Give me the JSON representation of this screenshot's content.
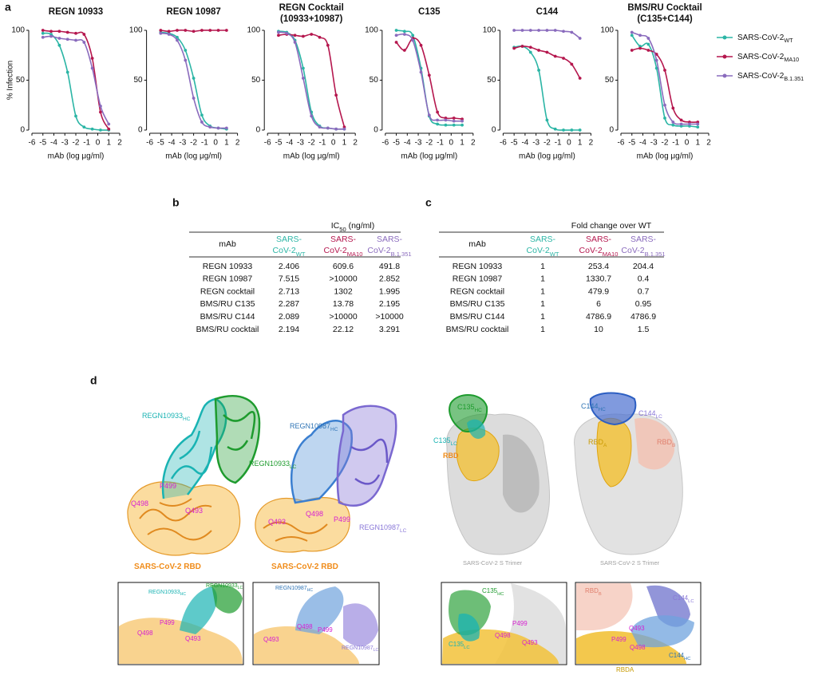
{
  "panel_labels": {
    "a": "a",
    "b": "b",
    "c": "c",
    "d": "d"
  },
  "chart_data": [
    {
      "type": "line",
      "markers": true,
      "title": [
        "REGN 10933"
      ],
      "y_label": "% Infection",
      "x_label": "mAb (log μg/ml)",
      "x": [
        -5,
        -4.25,
        -3.5,
        -2.75,
        -2,
        -1.25,
        -0.5,
        0.25,
        1
      ],
      "series": [
        {
          "name": "SARS-CoV-2",
          "name_subscript": "WT",
          "color": "#2bb5a5",
          "values": [
            97,
            96,
            85,
            58,
            14,
            3,
            1,
            0,
            0
          ]
        },
        {
          "name": "SARS-CoV-2",
          "name_subscript": "MA10",
          "color": "#b5174e",
          "values": [
            100,
            99,
            99,
            98,
            97,
            96,
            72,
            18,
            1
          ]
        },
        {
          "name": "SARS-CoV-2",
          "name_subscript": "B.1.351",
          "color": "#8a6bbd",
          "values": [
            93,
            94,
            92,
            91,
            90,
            88,
            62,
            24,
            6
          ]
        }
      ],
      "xlim": [
        -6,
        2
      ],
      "xticks": [
        -6,
        -5,
        -4,
        -3,
        -2,
        -1,
        0,
        1,
        2
      ],
      "ylim": [
        0,
        100
      ],
      "yticks": [
        0,
        50,
        100
      ]
    },
    {
      "type": "line",
      "markers": true,
      "title": [
        "REGN 10987"
      ],
      "x_label": "mAb (log μg/ml)",
      "x": [
        -5,
        -4.25,
        -3.5,
        -2.75,
        -2,
        -1.25,
        -0.5,
        0.25,
        1
      ],
      "series": [
        {
          "name": "SARS-CoV-2",
          "name_subscript": "WT",
          "color": "#2bb5a5",
          "values": [
            98,
            97,
            93,
            80,
            52,
            15,
            4,
            2,
            1
          ]
        },
        {
          "name": "SARS-CoV-2",
          "name_subscript": "MA10",
          "color": "#b5174e",
          "values": [
            100,
            99,
            100,
            100,
            99,
            100,
            100,
            100,
            100
          ]
        },
        {
          "name": "SARS-CoV-2",
          "name_subscript": "B.1.351",
          "color": "#8a6bbd",
          "values": [
            97,
            96,
            90,
            70,
            32,
            8,
            3,
            2,
            2
          ]
        }
      ],
      "xlim": [
        -6,
        2
      ],
      "xticks": [
        -6,
        -5,
        -4,
        -3,
        -2,
        -1,
        0,
        1,
        2
      ],
      "ylim": [
        0,
        100
      ],
      "yticks": [
        0,
        50,
        100
      ]
    },
    {
      "type": "line",
      "markers": true,
      "title": [
        "REGN Cocktail",
        "(10933+10987)"
      ],
      "x_label": "mAb (log μg/ml)",
      "x": [
        -5,
        -4.25,
        -3.5,
        -2.75,
        -2,
        -1.25,
        -0.5,
        0.25,
        1
      ],
      "series": [
        {
          "name": "SARS-CoV-2",
          "name_subscript": "WT",
          "color": "#2bb5a5",
          "values": [
            99,
            98,
            90,
            62,
            18,
            4,
            2,
            1,
            1
          ]
        },
        {
          "name": "SARS-CoV-2",
          "name_subscript": "MA10",
          "color": "#b5174e",
          "values": [
            95,
            96,
            95,
            94,
            96,
            93,
            85,
            35,
            3
          ]
        },
        {
          "name": "SARS-CoV-2",
          "name_subscript": "B.1.351",
          "color": "#8a6bbd",
          "values": [
            98,
            97,
            88,
            52,
            14,
            3,
            2,
            1,
            1
          ]
        }
      ],
      "xlim": [
        -6,
        2
      ],
      "xticks": [
        -6,
        -5,
        -4,
        -3,
        -2,
        -1,
        0,
        1,
        2
      ],
      "ylim": [
        0,
        100
      ],
      "yticks": [
        0,
        50,
        100
      ]
    },
    {
      "type": "line",
      "markers": true,
      "title": [
        "C135"
      ],
      "x_label": "mAb (log μg/ml)",
      "x": [
        -5,
        -4.25,
        -3.5,
        -2.75,
        -2,
        -1.25,
        -0.5,
        0.25,
        1
      ],
      "series": [
        {
          "name": "SARS-CoV-2",
          "name_subscript": "WT",
          "color": "#2bb5a5",
          "values": [
            100,
            99,
            95,
            62,
            14,
            6,
            5,
            5,
            5
          ]
        },
        {
          "name": "SARS-CoV-2",
          "name_subscript": "MA10",
          "color": "#b5174e",
          "values": [
            88,
            80,
            92,
            85,
            55,
            18,
            12,
            12,
            11
          ]
        },
        {
          "name": "SARS-CoV-2",
          "name_subscript": "B.1.351",
          "color": "#8a6bbd",
          "values": [
            95,
            96,
            90,
            58,
            15,
            10,
            10,
            9,
            9
          ]
        }
      ],
      "xlim": [
        -6,
        2
      ],
      "xticks": [
        -6,
        -5,
        -4,
        -3,
        -2,
        -1,
        0,
        1,
        2
      ],
      "ylim": [
        0,
        100
      ],
      "yticks": [
        0,
        50,
        100
      ]
    },
    {
      "type": "line",
      "markers": true,
      "title": [
        "C144"
      ],
      "x_label": "mAb (log μg/ml)",
      "x": [
        -5,
        -4.25,
        -3.5,
        -2.75,
        -2,
        -1.25,
        -0.5,
        0.25,
        1
      ],
      "series": [
        {
          "name": "SARS-CoV-2",
          "name_subscript": "WT",
          "color": "#2bb5a5",
          "values": [
            83,
            84,
            78,
            60,
            10,
            1,
            0,
            0,
            0
          ]
        },
        {
          "name": "SARS-CoV-2",
          "name_subscript": "MA10",
          "color": "#b5174e",
          "values": [
            82,
            84,
            83,
            80,
            78,
            74,
            72,
            66,
            52
          ]
        },
        {
          "name": "SARS-CoV-2",
          "name_subscript": "B.1.351",
          "color": "#8a6bbd",
          "values": [
            100,
            100,
            100,
            100,
            100,
            100,
            99,
            98,
            92
          ]
        }
      ],
      "xlim": [
        -6,
        2
      ],
      "xticks": [
        -6,
        -5,
        -4,
        -3,
        -2,
        -1,
        0,
        1,
        2
      ],
      "ylim": [
        0,
        100
      ],
      "yticks": [
        0,
        50,
        100
      ]
    },
    {
      "type": "line",
      "markers": true,
      "title": [
        "BMS/RU Cocktail",
        "(C135+C144)"
      ],
      "x_label": "mAb (log μg/ml)",
      "x": [
        -5,
        -4.25,
        -3.5,
        -2.75,
        -2,
        -1.25,
        -0.5,
        0.25,
        1
      ],
      "series": [
        {
          "name": "SARS-CoV-2",
          "name_subscript": "WT",
          "color": "#2bb5a5",
          "values": [
            95,
            84,
            86,
            62,
            12,
            5,
            4,
            4,
            3
          ]
        },
        {
          "name": "SARS-CoV-2",
          "name_subscript": "MA10",
          "color": "#b5174e",
          "values": [
            80,
            82,
            80,
            76,
            60,
            22,
            10,
            8,
            8
          ]
        },
        {
          "name": "SARS-CoV-2",
          "name_subscript": "B.1.351",
          "color": "#8a6bbd",
          "values": [
            98,
            95,
            92,
            70,
            25,
            8,
            6,
            6,
            6
          ]
        }
      ],
      "xlim": [
        -6,
        2
      ],
      "xticks": [
        -6,
        -5,
        -4,
        -3,
        -2,
        -1,
        0,
        1,
        2
      ],
      "ylim": [
        0,
        100
      ],
      "yticks": [
        0,
        50,
        100
      ]
    }
  ],
  "panel_b": {
    "caption": {
      "main": "IC",
      "sub": "50",
      "tail": " (ng/ml)"
    },
    "columns": [
      {
        "line1": "mAb"
      },
      {
        "line1": "SARS-",
        "line2": "CoV-2",
        "sub": "WT",
        "color": "#2bb5a5"
      },
      {
        "line1": "SARS-",
        "line2": "CoV-2",
        "sub": "MA10",
        "color": "#b5174e"
      },
      {
        "line1": "SARS-",
        "line2": "CoV-2",
        "sub": "B.1.351",
        "color": "#8a6bbd"
      }
    ],
    "rows": [
      [
        "REGN 10933",
        "2.406",
        "609.6",
        "491.8"
      ],
      [
        "REGN 10987",
        "7.515",
        ">10000",
        "2.852"
      ],
      [
        "REGN cocktail",
        "2.713",
        "1302",
        "1.995"
      ],
      [
        "BMS/RU C135",
        "2.287",
        "13.78",
        "2.195"
      ],
      [
        "BMS/RU C144",
        "2.089",
        ">10000",
        ">10000"
      ],
      [
        "BMS/RU cocktail",
        "2.194",
        "22.12",
        "3.291"
      ]
    ]
  },
  "panel_c": {
    "caption": {
      "main": "Fold change over WT"
    },
    "columns": [
      {
        "line1": "mAb"
      },
      {
        "line1": "SARS-",
        "line2": "CoV-2",
        "sub": "WT",
        "color": "#2bb5a5"
      },
      {
        "line1": "SARS-",
        "line2": "CoV-2",
        "sub": "MA10",
        "color": "#b5174e"
      },
      {
        "line1": "SARS-",
        "line2": "CoV-2",
        "sub": "B.1.351",
        "color": "#8a6bbd"
      }
    ],
    "rows": [
      [
        "REGN 10933",
        "1",
        "253.4",
        "204.4"
      ],
      [
        "REGN 10987",
        "1",
        "1330.7",
        "0.4"
      ],
      [
        "REGN cocktail",
        "1",
        "479.9",
        "0.7"
      ],
      [
        "BMS/RU C135",
        "1",
        "6",
        "0.95"
      ],
      [
        "BMS/RU C144",
        "1",
        "4786.9",
        "4786.9"
      ],
      [
        "BMS/RU cocktail",
        "1",
        "10",
        "1.5"
      ]
    ]
  },
  "panel_d": {
    "images": [
      {
        "labels": [
          {
            "text": "REGN10933",
            "sub": "HC",
            "color": "#19b3b3"
          },
          {
            "text": "REGN10933",
            "sub": "LC",
            "color": "#1e9b2e"
          },
          {
            "text": "P499",
            "color": "#d61fd1"
          },
          {
            "text": "Q498",
            "color": "#d61fd1"
          },
          {
            "text": "Q493",
            "color": "#d61fd1"
          },
          {
            "text": "SARS-CoV-2 RBD",
            "color": "#f08c1a",
            "bold": true
          }
        ]
      },
      {
        "labels": [
          {
            "text": "REGN10987",
            "sub": "HC",
            "color": "#2f74b5"
          },
          {
            "text": "REGN10987",
            "sub": "LC",
            "color": "#8a78d8"
          },
          {
            "text": "Q498",
            "color": "#d61fd1"
          },
          {
            "text": "Q493",
            "color": "#d61fd1"
          },
          {
            "text": "P499",
            "color": "#d61fd1"
          },
          {
            "text": "SARS-CoV-2 RBD",
            "color": "#f08c1a",
            "bold": true
          }
        ]
      },
      {
        "labels": [
          {
            "text": "C135",
            "sub": "HC",
            "color": "#1e9b2e"
          },
          {
            "text": "C135",
            "sub": "LC",
            "color": "#19b3b3"
          },
          {
            "text": "RBD",
            "color": "#f08c1a",
            "bold": true
          },
          {
            "text": "SARS-CoV-2 S Trimer",
            "color": "#a0a0a0"
          }
        ]
      },
      {
        "labels": [
          {
            "text": "C144",
            "sub": "HC",
            "color": "#2f74b5"
          },
          {
            "text": "C144",
            "sub": "LC",
            "color": "#8a78d8"
          },
          {
            "text": "RBD",
            "sub": "A",
            "color": "#c99a00"
          },
          {
            "text": "RBD",
            "sub": "B",
            "color": "#e0806e"
          },
          {
            "text": "SARS-CoV-2 S Trimer",
            "color": "#a0a0a0"
          }
        ]
      },
      {
        "labels": [
          {
            "text": "REGN10933",
            "sub": "HC",
            "color": "#19b3b3"
          },
          {
            "text": "REGN10933",
            "sub": "LC",
            "color": "#1e9b2e"
          },
          {
            "text": "P499",
            "color": "#d61fd1"
          },
          {
            "text": "Q498",
            "color": "#d61fd1"
          },
          {
            "text": "Q493",
            "color": "#d61fd1"
          }
        ]
      },
      {
        "labels": [
          {
            "text": "REGN10987",
            "sub": "HC",
            "color": "#2f74b5"
          },
          {
            "text": "Q498",
            "color": "#d61fd1"
          },
          {
            "text": "P499",
            "color": "#d61fd1"
          },
          {
            "text": "Q493",
            "color": "#d61fd1"
          },
          {
            "text": "REGN10987",
            "sub": "LC",
            "color": "#8a78d8"
          }
        ]
      },
      {
        "labels": [
          {
            "text": "C135",
            "sub": "HC",
            "color": "#1e9b2e"
          },
          {
            "text": "C135",
            "sub": "LC",
            "color": "#19b3b3"
          },
          {
            "text": "P499",
            "color": "#d61fd1"
          },
          {
            "text": "Q498",
            "color": "#d61fd1"
          },
          {
            "text": "Q493",
            "color": "#d61fd1"
          }
        ]
      },
      {
        "labels": [
          {
            "text": "RBD",
            "sub": "B",
            "color": "#e0806e"
          },
          {
            "text": "C144",
            "sub": "LC",
            "color": "#8a78d8"
          },
          {
            "text": "Q493",
            "color": "#d61fd1"
          },
          {
            "text": "P499",
            "color": "#d61fd1"
          },
          {
            "text": "Q498",
            "color": "#d61fd1"
          },
          {
            "text": "C144",
            "sub": "HC",
            "color": "#2f74b5"
          },
          {
            "text": "RBDA",
            "color": "#c99a00"
          }
        ]
      }
    ]
  }
}
